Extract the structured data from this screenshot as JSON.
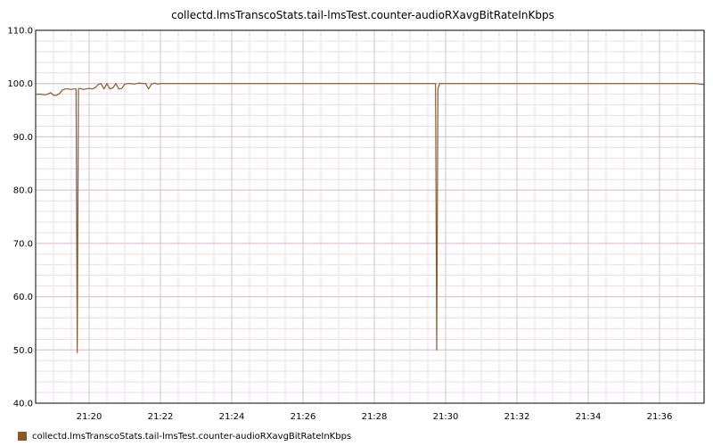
{
  "chart_data": {
    "type": "line",
    "title": "collectd.lmsTranscoStats.tail-lmsTest.counter-audioRXavgBitRateInKbps",
    "xlabel": "",
    "ylabel": "",
    "ylim": [
      40.0,
      110.0
    ],
    "yticks": [
      "40.0",
      "50.0",
      "60.0",
      "70.0",
      "80.0",
      "90.0",
      "100.0",
      "110.0"
    ],
    "xlim": [
      "21:18:30",
      "21:37:15"
    ],
    "xticks": [
      "21:20",
      "21:22",
      "21:24",
      "21:26",
      "21:28",
      "21:30",
      "21:32",
      "21:34",
      "21:36"
    ],
    "grid": true,
    "legend_position": "bottom-left",
    "series": [
      {
        "name": "collectd.lmsTranscoStats.tail-lmsTest.counter-audioRXavgBitRateInKbps",
        "color": "#8B5A2B",
        "points": [
          [
            "21:18:30",
            98
          ],
          [
            "21:18:40",
            98
          ],
          [
            "21:18:45",
            97.9
          ],
          [
            "21:18:50",
            98
          ],
          [
            "21:18:55",
            98.3
          ],
          [
            "21:19:00",
            97.8
          ],
          [
            "21:19:05",
            97.8
          ],
          [
            "21:19:10",
            98.1
          ],
          [
            "21:19:15",
            98.8
          ],
          [
            "21:19:20",
            99
          ],
          [
            "21:19:25",
            99
          ],
          [
            "21:19:30",
            98.9
          ],
          [
            "21:19:35",
            99
          ],
          [
            "21:19:38",
            99
          ],
          [
            "21:19:40",
            49.5
          ],
          [
            "21:19:42",
            99
          ],
          [
            "21:19:45",
            99.1
          ],
          [
            "21:19:50",
            98.9
          ],
          [
            "21:19:55",
            99
          ],
          [
            "21:20:00",
            99.1
          ],
          [
            "21:20:05",
            99
          ],
          [
            "21:20:10",
            99.2
          ],
          [
            "21:20:15",
            99.8
          ],
          [
            "21:20:20",
            100
          ],
          [
            "21:20:25",
            99
          ],
          [
            "21:20:30",
            100
          ],
          [
            "21:20:35",
            99
          ],
          [
            "21:20:40",
            99.2
          ],
          [
            "21:20:45",
            100
          ],
          [
            "21:20:50",
            99
          ],
          [
            "21:20:55",
            99.1
          ],
          [
            "21:21:00",
            99.9
          ],
          [
            "21:21:05",
            100
          ],
          [
            "21:21:10",
            100
          ],
          [
            "21:21:15",
            99.9
          ],
          [
            "21:21:20",
            100
          ],
          [
            "21:21:25",
            100.1
          ],
          [
            "21:21:30",
            100
          ],
          [
            "21:21:35",
            100
          ],
          [
            "21:21:40",
            99
          ],
          [
            "21:21:45",
            99.9
          ],
          [
            "21:21:50",
            100.1
          ],
          [
            "21:21:55",
            99.9
          ],
          [
            "21:22:00",
            100
          ],
          [
            "21:22:30",
            100
          ],
          [
            "21:23:00",
            100
          ],
          [
            "21:23:30",
            100
          ],
          [
            "21:24:00",
            100
          ],
          [
            "21:24:30",
            100
          ],
          [
            "21:25:00",
            100
          ],
          [
            "21:25:30",
            100
          ],
          [
            "21:26:00",
            100
          ],
          [
            "21:26:30",
            100
          ],
          [
            "21:27:00",
            100
          ],
          [
            "21:27:30",
            100
          ],
          [
            "21:28:00",
            100
          ],
          [
            "21:28:30",
            100
          ],
          [
            "21:29:00",
            100
          ],
          [
            "21:29:30",
            100
          ],
          [
            "21:29:40",
            100
          ],
          [
            "21:29:43",
            100
          ],
          [
            "21:29:45",
            50.0
          ],
          [
            "21:29:47",
            99
          ],
          [
            "21:29:50",
            100
          ],
          [
            "21:30:00",
            100
          ],
          [
            "21:30:30",
            100
          ],
          [
            "21:31:00",
            100
          ],
          [
            "21:31:30",
            100
          ],
          [
            "21:32:00",
            100
          ],
          [
            "21:32:30",
            100
          ],
          [
            "21:33:00",
            100
          ],
          [
            "21:33:30",
            100
          ],
          [
            "21:34:00",
            100
          ],
          [
            "21:34:30",
            100
          ],
          [
            "21:35:00",
            100
          ],
          [
            "21:35:30",
            100
          ],
          [
            "21:36:00",
            100
          ],
          [
            "21:36:30",
            100
          ],
          [
            "21:37:00",
            100
          ],
          [
            "21:37:15",
            99.8
          ]
        ]
      }
    ]
  }
}
